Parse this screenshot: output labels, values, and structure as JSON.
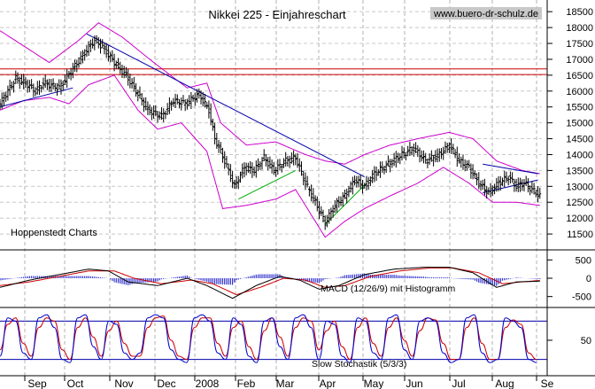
{
  "chart_data": {
    "type": "line",
    "title": "Nikkei 225 - Einjahreschart",
    "watermark": "www.buero-dr-schulz.de",
    "credit": "Hoppenstedt Charts",
    "months": [
      "Sep",
      "Oct",
      "Nov",
      "Dec",
      "2008",
      "Feb",
      "Mar",
      "Apr",
      "May",
      "Jun",
      "Jul",
      "Aug",
      "Se"
    ],
    "price_panel": {
      "ylim": [
        11000,
        18700
      ],
      "ticks": [
        11500,
        12000,
        12500,
        13000,
        13500,
        14000,
        14500,
        15000,
        15500,
        16000,
        16500,
        17000,
        17500,
        18000,
        18500
      ],
      "horizontal_lines": [
        16520,
        16700
      ],
      "close_series": [
        {
          "x": 0,
          "v": 15600
        },
        {
          "x": 8,
          "v": 16400
        },
        {
          "x": 14,
          "v": 16200
        },
        {
          "x": 18,
          "v": 16000
        },
        {
          "x": 22,
          "v": 16250
        },
        {
          "x": 30,
          "v": 16100
        },
        {
          "x": 37,
          "v": 16700
        },
        {
          "x": 44,
          "v": 17300
        },
        {
          "x": 48,
          "v": 17600
        },
        {
          "x": 52,
          "v": 17400
        },
        {
          "x": 58,
          "v": 16900
        },
        {
          "x": 64,
          "v": 16500
        },
        {
          "x": 70,
          "v": 15900
        },
        {
          "x": 75,
          "v": 15400
        },
        {
          "x": 82,
          "v": 15200
        },
        {
          "x": 88,
          "v": 15700
        },
        {
          "x": 94,
          "v": 15600
        },
        {
          "x": 101,
          "v": 15900
        },
        {
          "x": 106,
          "v": 15400
        },
        {
          "x": 109,
          "v": 14500
        },
        {
          "x": 114,
          "v": 13800
        },
        {
          "x": 119,
          "v": 13000
        },
        {
          "x": 124,
          "v": 13600
        },
        {
          "x": 129,
          "v": 13500
        },
        {
          "x": 134,
          "v": 13900
        },
        {
          "x": 139,
          "v": 13500
        },
        {
          "x": 145,
          "v": 13800
        },
        {
          "x": 150,
          "v": 13900
        },
        {
          "x": 155,
          "v": 13100
        },
        {
          "x": 160,
          "v": 12500
        },
        {
          "x": 165,
          "v": 11850
        },
        {
          "x": 170,
          "v": 12400
        },
        {
          "x": 175,
          "v": 12700
        },
        {
          "x": 180,
          "v": 13200
        },
        {
          "x": 185,
          "v": 13000
        },
        {
          "x": 190,
          "v": 13400
        },
        {
          "x": 197,
          "v": 13700
        },
        {
          "x": 204,
          "v": 14000
        },
        {
          "x": 210,
          "v": 14200
        },
        {
          "x": 216,
          "v": 13800
        },
        {
          "x": 223,
          "v": 14000
        },
        {
          "x": 228,
          "v": 14300
        },
        {
          "x": 233,
          "v": 13800
        },
        {
          "x": 238,
          "v": 13600
        },
        {
          "x": 243,
          "v": 13100
        },
        {
          "x": 248,
          "v": 12800
        },
        {
          "x": 253,
          "v": 13100
        },
        {
          "x": 258,
          "v": 13300
        },
        {
          "x": 262,
          "v": 13000
        },
        {
          "x": 266,
          "v": 13100
        },
        {
          "x": 270,
          "v": 12900
        },
        {
          "x": 274,
          "v": 12700
        }
      ],
      "bollinger_upper": [
        {
          "x": 0,
          "v": 17900
        },
        {
          "x": 15,
          "v": 17300
        },
        {
          "x": 25,
          "v": 16900
        },
        {
          "x": 40,
          "v": 17600
        },
        {
          "x": 50,
          "v": 18150
        },
        {
          "x": 62,
          "v": 17700
        },
        {
          "x": 78,
          "v": 16900
        },
        {
          "x": 95,
          "v": 16100
        },
        {
          "x": 105,
          "v": 16250
        },
        {
          "x": 112,
          "v": 15000
        },
        {
          "x": 125,
          "v": 14300
        },
        {
          "x": 140,
          "v": 14400
        },
        {
          "x": 155,
          "v": 14000
        },
        {
          "x": 165,
          "v": 13800
        },
        {
          "x": 175,
          "v": 13700
        },
        {
          "x": 185,
          "v": 14000
        },
        {
          "x": 198,
          "v": 14300
        },
        {
          "x": 212,
          "v": 14500
        },
        {
          "x": 228,
          "v": 14700
        },
        {
          "x": 240,
          "v": 14500
        },
        {
          "x": 252,
          "v": 13800
        },
        {
          "x": 265,
          "v": 13500
        },
        {
          "x": 274,
          "v": 13400
        }
      ],
      "bollinger_lower": [
        {
          "x": 0,
          "v": 15400
        },
        {
          "x": 12,
          "v": 15700
        },
        {
          "x": 25,
          "v": 15800
        },
        {
          "x": 35,
          "v": 15600
        },
        {
          "x": 45,
          "v": 16200
        },
        {
          "x": 58,
          "v": 16500
        },
        {
          "x": 70,
          "v": 15400
        },
        {
          "x": 80,
          "v": 14800
        },
        {
          "x": 92,
          "v": 15000
        },
        {
          "x": 105,
          "v": 14100
        },
        {
          "x": 113,
          "v": 12300
        },
        {
          "x": 125,
          "v": 12400
        },
        {
          "x": 140,
          "v": 12600
        },
        {
          "x": 150,
          "v": 12900
        },
        {
          "x": 158,
          "v": 12100
        },
        {
          "x": 165,
          "v": 11400
        },
        {
          "x": 175,
          "v": 11900
        },
        {
          "x": 185,
          "v": 12300
        },
        {
          "x": 198,
          "v": 12700
        },
        {
          "x": 212,
          "v": 13100
        },
        {
          "x": 225,
          "v": 13600
        },
        {
          "x": 238,
          "v": 13100
        },
        {
          "x": 250,
          "v": 12500
        },
        {
          "x": 262,
          "v": 12500
        },
        {
          "x": 274,
          "v": 12400
        }
      ],
      "trendlines": [
        {
          "color": "#0000aa",
          "from": {
            "x": 0,
            "v": 15500
          },
          "to": {
            "x": 37,
            "v": 16100
          }
        },
        {
          "color": "#0000aa",
          "from": {
            "x": 44,
            "v": 17800
          },
          "to": {
            "x": 185,
            "v": 13300
          }
        },
        {
          "color": "#00aa00",
          "from": {
            "x": 121,
            "v": 12600
          },
          "to": {
            "x": 150,
            "v": 13500
          }
        },
        {
          "color": "#00aa00",
          "from": {
            "x": 165,
            "v": 11800
          },
          "to": {
            "x": 186,
            "v": 13100
          }
        },
        {
          "color": "#0000aa",
          "from": {
            "x": 245,
            "v": 13700
          },
          "to": {
            "x": 273,
            "v": 13400
          }
        },
        {
          "color": "#0000aa",
          "from": {
            "x": 245,
            "v": 12800
          },
          "to": {
            "x": 273,
            "v": 13200
          }
        }
      ]
    },
    "macd_panel": {
      "label": "MACD (12/26/9) mit Histogramm",
      "ylim": [
        -750,
        750
      ],
      "ticks": [
        -500,
        0,
        500
      ],
      "macd": [
        {
          "x": 0,
          "v": -250
        },
        {
          "x": 15,
          "v": -50
        },
        {
          "x": 30,
          "v": 100
        },
        {
          "x": 45,
          "v": 250
        },
        {
          "x": 55,
          "v": 200
        },
        {
          "x": 65,
          "v": -100
        },
        {
          "x": 80,
          "v": -200
        },
        {
          "x": 95,
          "v": 0
        },
        {
          "x": 105,
          "v": -200
        },
        {
          "x": 118,
          "v": -550
        },
        {
          "x": 130,
          "v": -200
        },
        {
          "x": 142,
          "v": 50
        },
        {
          "x": 152,
          "v": -50
        },
        {
          "x": 162,
          "v": -300
        },
        {
          "x": 172,
          "v": -200
        },
        {
          "x": 185,
          "v": 100
        },
        {
          "x": 200,
          "v": 250
        },
        {
          "x": 215,
          "v": 300
        },
        {
          "x": 228,
          "v": 300
        },
        {
          "x": 240,
          "v": 150
        },
        {
          "x": 252,
          "v": -250
        },
        {
          "x": 262,
          "v": -100
        },
        {
          "x": 274,
          "v": -80
        }
      ],
      "signal": [
        {
          "x": 0,
          "v": -200
        },
        {
          "x": 15,
          "v": -100
        },
        {
          "x": 30,
          "v": 50
        },
        {
          "x": 45,
          "v": 200
        },
        {
          "x": 58,
          "v": 200
        },
        {
          "x": 68,
          "v": 0
        },
        {
          "x": 82,
          "v": -150
        },
        {
          "x": 97,
          "v": -50
        },
        {
          "x": 108,
          "v": -150
        },
        {
          "x": 120,
          "v": -450
        },
        {
          "x": 132,
          "v": -250
        },
        {
          "x": 144,
          "v": 0
        },
        {
          "x": 155,
          "v": -50
        },
        {
          "x": 165,
          "v": -250
        },
        {
          "x": 175,
          "v": -200
        },
        {
          "x": 188,
          "v": 50
        },
        {
          "x": 203,
          "v": 200
        },
        {
          "x": 218,
          "v": 280
        },
        {
          "x": 230,
          "v": 280
        },
        {
          "x": 243,
          "v": 150
        },
        {
          "x": 255,
          "v": -150
        },
        {
          "x": 265,
          "v": -100
        },
        {
          "x": 274,
          "v": -60
        }
      ]
    },
    "stoch_panel": {
      "label": "Slow Stochastik (5/3/3)",
      "ylim": [
        0,
        100
      ],
      "ticks": [
        50
      ],
      "bands": [
        20,
        80
      ],
      "k": [
        25,
        85,
        80,
        30,
        20,
        85,
        90,
        70,
        20,
        15,
        85,
        90,
        40,
        20,
        80,
        75,
        30,
        20,
        30,
        85,
        90,
        85,
        35,
        20,
        15,
        85,
        90,
        80,
        30,
        20,
        85,
        75,
        25,
        15,
        80,
        85,
        40,
        20,
        85,
        90,
        70,
        20,
        80,
        75,
        25,
        15,
        85,
        80,
        30,
        20,
        85,
        90,
        35,
        20,
        80,
        85,
        80,
        30,
        15,
        20,
        85,
        90,
        30,
        15,
        20,
        85,
        80,
        70,
        20,
        15
      ],
      "d": [
        35,
        75,
        85,
        45,
        25,
        70,
        85,
        80,
        35,
        20,
        70,
        85,
        55,
        25,
        65,
        80,
        45,
        25,
        25,
        70,
        85,
        88,
        50,
        25,
        20,
        70,
        85,
        85,
        45,
        25,
        70,
        80,
        40,
        20,
        65,
        85,
        55,
        25,
        70,
        85,
        80,
        35,
        65,
        80,
        40,
        20,
        70,
        85,
        45,
        25,
        70,
        85,
        50,
        25,
        65,
        85,
        82,
        45,
        20,
        20,
        70,
        85,
        45,
        20,
        20,
        70,
        82,
        75,
        30,
        20
      ]
    }
  }
}
